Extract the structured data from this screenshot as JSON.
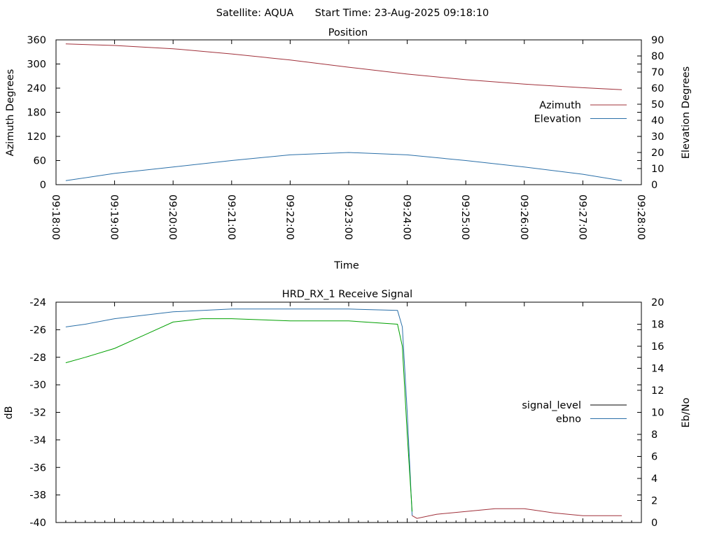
{
  "header": {
    "satellite": "Satellite: AQUA",
    "start_time": "Start Time: 23-Aug-2025 09:18:10"
  },
  "chart_data": [
    {
      "type": "line",
      "title": "Position",
      "xlabel": "Time",
      "ylabel": "Azimuth Degrees",
      "y2label": "Elevation Degrees",
      "ylim": [
        0,
        360
      ],
      "y2lim": [
        0,
        90
      ],
      "yticks": [
        "0",
        "60",
        "120",
        "180",
        "240",
        "300",
        "360"
      ],
      "y2ticks": [
        "0",
        "10",
        "20",
        "30",
        "40",
        "50",
        "60",
        "70",
        "80",
        "90"
      ],
      "xticks": [
        "09:18:00",
        "09:19:00",
        "09:20:00",
        "09:21:00",
        "09:22:00",
        "09:23:00",
        "09:24:00",
        "09:25:00",
        "09:26:00",
        "09:27:00",
        "09:28:00"
      ],
      "legend_position": "right",
      "grid": false,
      "series": [
        {
          "name": "Azimuth",
          "axis": "y",
          "color": "#a0303a",
          "x": [
            "09:18:10",
            "09:19:00",
            "09:20:00",
            "09:21:00",
            "09:22:00",
            "09:23:00",
            "09:24:00",
            "09:25:00",
            "09:26:00",
            "09:27:00",
            "09:27:40"
          ],
          "y": [
            350,
            346,
            338,
            325,
            310,
            292,
            275,
            261,
            250,
            241,
            236
          ]
        },
        {
          "name": "Elevation",
          "axis": "y2",
          "color": "#2a6fa8",
          "x": [
            "09:18:10",
            "09:19:00",
            "09:20:00",
            "09:21:00",
            "09:22:00",
            "09:23:00",
            "09:24:00",
            "09:25:00",
            "09:26:00",
            "09:27:00",
            "09:27:40"
          ],
          "y": [
            2.5,
            7,
            11,
            15,
            18.5,
            20,
            18.5,
            15,
            11,
            6.5,
            2.5
          ]
        }
      ]
    },
    {
      "type": "line",
      "title": "HRD_RX_1 Receive Signal",
      "xlabel": "",
      "ylabel": "dB",
      "y2label": "Eb/No",
      "ylim": [
        -40,
        -24
      ],
      "y2lim": [
        0,
        20
      ],
      "yticks": [
        "-40",
        "-38",
        "-36",
        "-34",
        "-32",
        "-30",
        "-28",
        "-26",
        "-24"
      ],
      "y2ticks": [
        "0",
        "2",
        "4",
        "6",
        "8",
        "10",
        "12",
        "14",
        "16",
        "18",
        "20"
      ],
      "legend_position": "right",
      "grid": false,
      "series": [
        {
          "name": "signal_level",
          "axis": "y",
          "color": "#000000",
          "segments": [
            {
              "color": "#2a6fa8",
              "x": [
                "09:18:10",
                "09:18:30",
                "09:19:00",
                "09:20:00",
                "09:21:00",
                "09:22:00",
                "09:23:00",
                "09:23:50",
                "09:23:55",
                "09:24:00",
                "09:24:05"
              ],
              "y": [
                -25.8,
                -25.6,
                -25.2,
                -24.7,
                -24.5,
                -24.5,
                -24.5,
                -24.6,
                -25.8,
                -32.0,
                -39.5
              ]
            },
            {
              "color": "#a0303a",
              "x": [
                "09:24:05",
                "09:24:10",
                "09:24:30",
                "09:25:00",
                "09:25:30",
                "09:26:00",
                "09:26:30",
                "09:27:00",
                "09:27:40"
              ],
              "y": [
                -39.5,
                -39.7,
                -39.4,
                -39.2,
                -39.0,
                -39.0,
                -39.3,
                -39.5,
                -39.5
              ]
            }
          ]
        },
        {
          "name": "ebno",
          "axis": "y2",
          "color": "#2a6fa8",
          "segments": [
            {
              "color": "#00a000",
              "x": [
                "09:18:10",
                "09:18:30",
                "09:19:00",
                "09:19:30",
                "09:20:00",
                "09:20:30",
                "09:21:00",
                "09:22:00",
                "09:23:00",
                "09:23:50",
                "09:23:55",
                "09:24:00",
                "09:24:05"
              ],
              "y": [
                14.5,
                15.0,
                15.8,
                17.0,
                18.2,
                18.5,
                18.5,
                18.3,
                18.3,
                18.0,
                16.0,
                8.0,
                1.0
              ]
            }
          ]
        }
      ]
    }
  ]
}
